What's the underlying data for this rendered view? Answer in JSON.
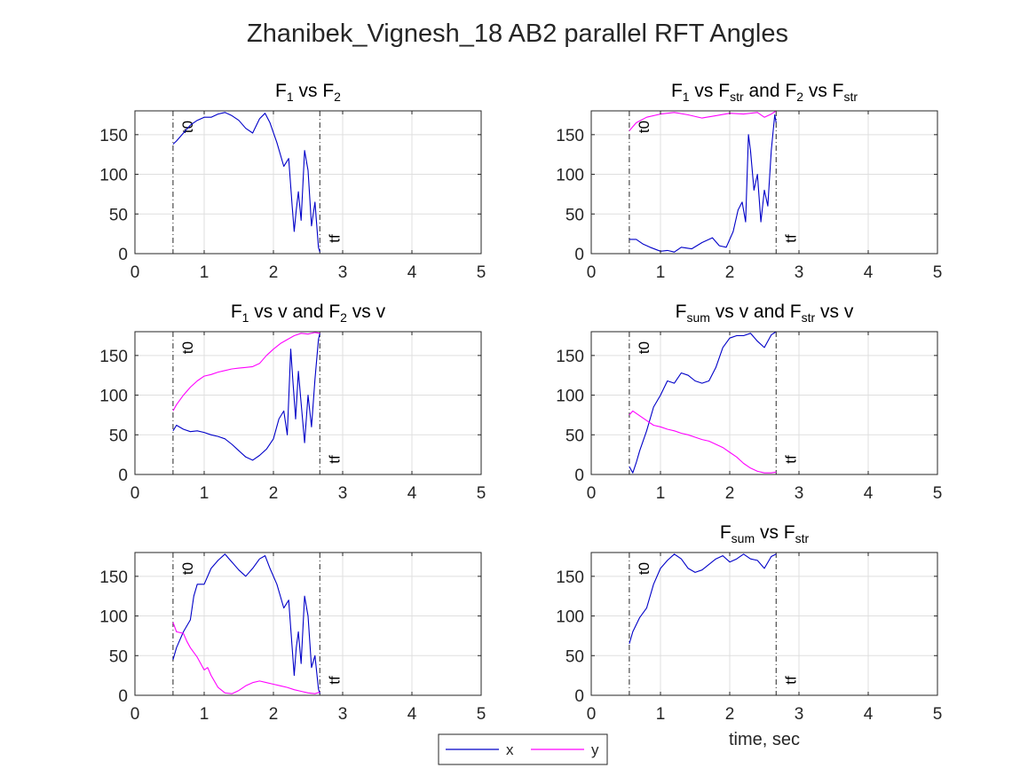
{
  "figure": {
    "title": "Zhanibek_Vignesh_18 AB2 parallel RFT Angles",
    "xlabel": "time, sec",
    "legend": {
      "placement": "bottom-center",
      "entries": [
        {
          "name": "x",
          "color": "#0000c8"
        },
        {
          "name": "y",
          "color": "#ff00ff"
        }
      ]
    },
    "markers": {
      "t0": 0.55,
      "tf": 2.67,
      "t0_label": "t0",
      "tf_label": "tf"
    }
  },
  "chart_data": [
    {
      "type": "line",
      "title": [
        [
          "F",
          ""
        ],
        [
          "1",
          "sub"
        ],
        [
          " vs F",
          ""
        ],
        [
          "2",
          "sub"
        ]
      ],
      "xlim": [
        0,
        5
      ],
      "ylim": [
        0,
        180
      ],
      "grid": true,
      "xticks": [
        "0",
        "1",
        "2",
        "3",
        "4",
        "5"
      ],
      "yticks": [
        "0",
        "50",
        "100",
        "150"
      ],
      "series": [
        {
          "color": "#0000c8",
          "x": [
            0.55,
            0.6,
            0.7,
            0.8,
            0.9,
            1.0,
            1.1,
            1.2,
            1.3,
            1.4,
            1.5,
            1.6,
            1.7,
            1.8,
            1.88,
            1.95,
            2.05,
            2.15,
            2.22,
            2.27,
            2.3,
            2.33,
            2.36,
            2.4,
            2.45,
            2.5,
            2.55,
            2.6,
            2.65,
            2.67
          ],
          "y": [
            138,
            142,
            152,
            162,
            168,
            172,
            172,
            176,
            178,
            174,
            168,
            158,
            152,
            170,
            177,
            165,
            140,
            110,
            120,
            60,
            28,
            55,
            78,
            42,
            130,
            105,
            35,
            65,
            8,
            2
          ]
        }
      ]
    },
    {
      "type": "line",
      "title": [
        [
          "F",
          ""
        ],
        [
          "1",
          "sub"
        ],
        [
          " vs F",
          ""
        ],
        [
          "str",
          "sub"
        ],
        [
          " and F",
          ""
        ],
        [
          "2",
          "sub"
        ],
        [
          " vs F",
          ""
        ],
        [
          "str",
          "sub"
        ]
      ],
      "xlim": [
        0,
        5
      ],
      "ylim": [
        0,
        180
      ],
      "grid": true,
      "xticks": [
        "0",
        "1",
        "2",
        "3",
        "4",
        "5"
      ],
      "yticks": [
        "0",
        "50",
        "100",
        "150"
      ],
      "series": [
        {
          "color": "#0000c8",
          "x": [
            0.55,
            0.65,
            0.75,
            0.85,
            1.0,
            1.1,
            1.2,
            1.3,
            1.45,
            1.6,
            1.75,
            1.85,
            1.95,
            2.05,
            2.12,
            2.18,
            2.23,
            2.27,
            2.3,
            2.35,
            2.4,
            2.45,
            2.5,
            2.55,
            2.6,
            2.65,
            2.67
          ],
          "y": [
            18,
            18,
            12,
            8,
            3,
            4,
            2,
            8,
            6,
            14,
            20,
            10,
            8,
            28,
            55,
            65,
            40,
            150,
            130,
            80,
            100,
            40,
            80,
            60,
            130,
            175,
            165
          ]
        },
        {
          "color": "#ff00ff",
          "x": [
            0.55,
            0.65,
            0.8,
            1.0,
            1.2,
            1.4,
            1.6,
            1.8,
            2.0,
            2.2,
            2.4,
            2.5,
            2.6,
            2.67
          ],
          "y": [
            155,
            165,
            172,
            176,
            178,
            175,
            171,
            174,
            177,
            176,
            178,
            172,
            176,
            180
          ]
        }
      ]
    },
    {
      "type": "line",
      "title": [
        [
          "F",
          ""
        ],
        [
          "1",
          "sub"
        ],
        [
          " vs v and F",
          ""
        ],
        [
          "2",
          "sub"
        ],
        [
          " vs v",
          ""
        ]
      ],
      "xlim": [
        0,
        5
      ],
      "ylim": [
        0,
        180
      ],
      "grid": true,
      "xticks": [
        "0",
        "1",
        "2",
        "3",
        "4",
        "5"
      ],
      "yticks": [
        "0",
        "50",
        "100",
        "150"
      ],
      "series": [
        {
          "color": "#0000c8",
          "x": [
            0.55,
            0.6,
            0.7,
            0.8,
            0.9,
            1.0,
            1.1,
            1.2,
            1.3,
            1.4,
            1.5,
            1.6,
            1.7,
            1.8,
            1.9,
            2.0,
            2.08,
            2.15,
            2.2,
            2.25,
            2.28,
            2.32,
            2.36,
            2.4,
            2.45,
            2.5,
            2.55,
            2.6,
            2.65,
            2.67
          ],
          "y": [
            55,
            62,
            57,
            54,
            55,
            53,
            50,
            48,
            45,
            38,
            30,
            22,
            18,
            24,
            32,
            45,
            70,
            80,
            50,
            158,
            120,
            70,
            130,
            90,
            40,
            100,
            60,
            120,
            170,
            178
          ]
        },
        {
          "color": "#ff00ff",
          "x": [
            0.55,
            0.6,
            0.7,
            0.8,
            0.9,
            1.0,
            1.1,
            1.2,
            1.3,
            1.4,
            1.5,
            1.6,
            1.7,
            1.8,
            1.9,
            2.0,
            2.1,
            2.2,
            2.3,
            2.4,
            2.5,
            2.6,
            2.67
          ],
          "y": [
            80,
            88,
            100,
            110,
            118,
            124,
            126,
            129,
            131,
            133,
            134,
            135,
            136,
            140,
            150,
            158,
            165,
            170,
            175,
            178,
            177,
            179,
            178
          ]
        }
      ]
    },
    {
      "type": "line",
      "title": [
        [
          "F",
          ""
        ],
        [
          "sum",
          "sub"
        ],
        [
          " vs v and F",
          ""
        ],
        [
          "str",
          "sub"
        ],
        [
          " vs v",
          ""
        ]
      ],
      "xlim": [
        0,
        5
      ],
      "ylim": [
        0,
        180
      ],
      "grid": true,
      "xticks": [
        "0",
        "1",
        "2",
        "3",
        "4",
        "5"
      ],
      "yticks": [
        "0",
        "50",
        "100",
        "150"
      ],
      "series": [
        {
          "color": "#0000c8",
          "x": [
            0.55,
            0.6,
            0.65,
            0.7,
            0.8,
            0.9,
            1.0,
            1.1,
            1.2,
            1.3,
            1.4,
            1.5,
            1.6,
            1.7,
            1.8,
            1.9,
            2.0,
            2.1,
            2.2,
            2.3,
            2.4,
            2.5,
            2.6,
            2.67
          ],
          "y": [
            10,
            2,
            15,
            30,
            55,
            85,
            100,
            118,
            115,
            128,
            125,
            118,
            115,
            118,
            135,
            160,
            172,
            175,
            175,
            178,
            168,
            160,
            176,
            180
          ]
        },
        {
          "color": "#ff00ff",
          "x": [
            0.55,
            0.6,
            0.7,
            0.8,
            0.9,
            1.0,
            1.1,
            1.2,
            1.3,
            1.4,
            1.5,
            1.6,
            1.7,
            1.8,
            1.9,
            2.0,
            2.1,
            2.2,
            2.3,
            2.4,
            2.5,
            2.6,
            2.67
          ],
          "y": [
            75,
            80,
            74,
            68,
            62,
            60,
            57,
            55,
            52,
            50,
            47,
            44,
            42,
            38,
            34,
            28,
            22,
            14,
            8,
            4,
            2,
            2,
            3
          ]
        }
      ]
    },
    {
      "type": "line",
      "title": [],
      "xlim": [
        0,
        5
      ],
      "ylim": [
        0,
        180
      ],
      "grid": true,
      "xticks": [
        "0",
        "1",
        "2",
        "3",
        "4",
        "5"
      ],
      "yticks": [
        "0",
        "50",
        "100",
        "150"
      ],
      "series": [
        {
          "color": "#0000c8",
          "x": [
            0.55,
            0.6,
            0.7,
            0.8,
            0.85,
            0.9,
            1.0,
            1.1,
            1.2,
            1.3,
            1.4,
            1.5,
            1.6,
            1.7,
            1.8,
            1.88,
            1.95,
            2.05,
            2.15,
            2.22,
            2.27,
            2.3,
            2.33,
            2.36,
            2.4,
            2.45,
            2.5,
            2.55,
            2.6,
            2.65,
            2.67
          ],
          "y": [
            45,
            60,
            80,
            95,
            125,
            140,
            140,
            160,
            170,
            178,
            168,
            158,
            150,
            160,
            172,
            176,
            160,
            140,
            110,
            120,
            60,
            25,
            60,
            80,
            40,
            125,
            100,
            35,
            50,
            8,
            2
          ]
        },
        {
          "color": "#ff00ff",
          "x": [
            0.55,
            0.6,
            0.7,
            0.75,
            0.8,
            0.9,
            1.0,
            1.05,
            1.1,
            1.2,
            1.3,
            1.4,
            1.5,
            1.6,
            1.7,
            1.8,
            1.9,
            2.0,
            2.1,
            2.2,
            2.3,
            2.4,
            2.5,
            2.6,
            2.67
          ],
          "y": [
            92,
            80,
            78,
            68,
            60,
            48,
            32,
            35,
            25,
            10,
            3,
            2,
            6,
            12,
            16,
            18,
            16,
            14,
            12,
            10,
            7,
            5,
            3,
            2,
            4
          ]
        }
      ]
    },
    {
      "type": "line",
      "title": [
        [
          "F",
          ""
        ],
        [
          "sum",
          "sub"
        ],
        [
          " vs F",
          ""
        ],
        [
          "str",
          "sub"
        ]
      ],
      "xlim": [
        0,
        5
      ],
      "ylim": [
        0,
        180
      ],
      "grid": true,
      "xticks": [
        "0",
        "1",
        "2",
        "3",
        "4",
        "5"
      ],
      "yticks": [
        "0",
        "50",
        "100",
        "150"
      ],
      "series": [
        {
          "color": "#0000c8",
          "x": [
            0.55,
            0.6,
            0.7,
            0.8,
            0.9,
            1.0,
            1.1,
            1.2,
            1.3,
            1.4,
            1.5,
            1.6,
            1.7,
            1.8,
            1.9,
            2.0,
            2.1,
            2.2,
            2.3,
            2.4,
            2.5,
            2.6,
            2.67
          ],
          "y": [
            65,
            80,
            98,
            110,
            140,
            160,
            170,
            178,
            172,
            160,
            155,
            158,
            165,
            172,
            176,
            168,
            172,
            178,
            172,
            170,
            160,
            175,
            178
          ]
        }
      ]
    }
  ]
}
